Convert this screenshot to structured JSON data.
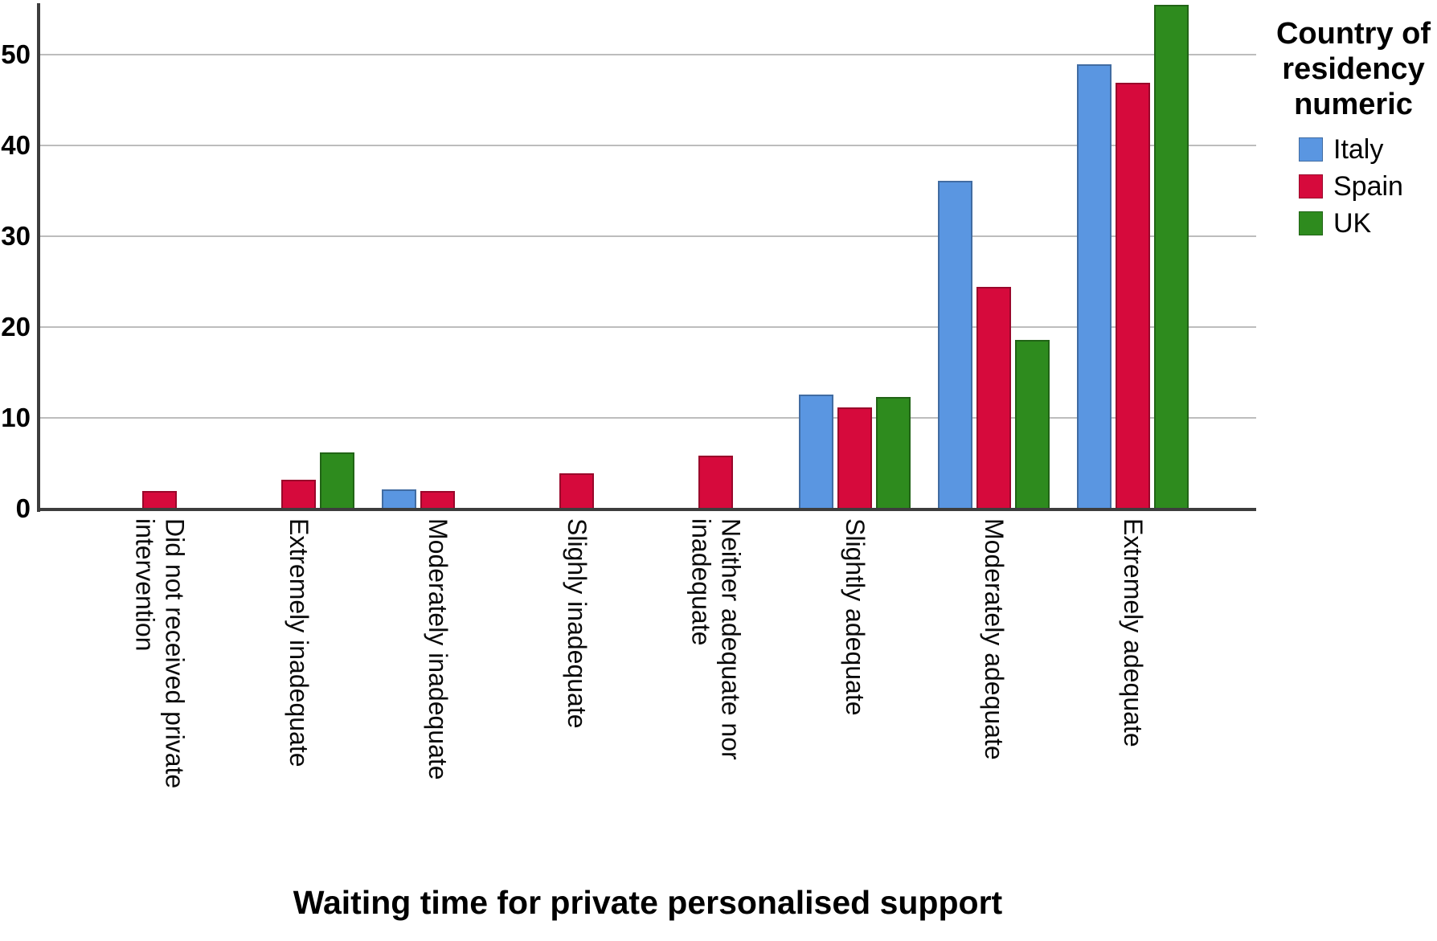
{
  "chart_data": {
    "type": "bar",
    "title": "",
    "xlabel": "Waiting time for private personalised support",
    "ylabel": "",
    "legend_title": "Country of residency numeric",
    "legend_position": "top-right",
    "grid": "horizontal",
    "ylim": [
      0,
      56
    ],
    "yticks": [
      0,
      10,
      20,
      30,
      40,
      50
    ],
    "categories": [
      [
        "Did not received private",
        "intervention"
      ],
      [
        "Extremely inadequate"
      ],
      [
        "Moderately inadequate"
      ],
      [
        "Slighly inadequate"
      ],
      [
        "Neither adequate nor",
        "inadequate"
      ],
      [
        "Slightly adequate"
      ],
      [
        "Moderately adequate"
      ],
      [
        "Extremely adequate"
      ]
    ],
    "series": [
      {
        "name": "Italy",
        "color": "#5A96E1",
        "values": [
          0,
          0,
          2.2,
          0,
          0,
          12.7,
          36.2,
          49
        ]
      },
      {
        "name": "Spain",
        "color": "#D60A3C",
        "values": [
          2,
          3.3,
          2,
          4,
          5.9,
          11.2,
          24.5,
          47
        ]
      },
      {
        "name": "UK",
        "color": "#2E8B1E",
        "values": [
          0,
          6.3,
          0,
          0,
          0,
          12.4,
          18.7,
          55.6
        ]
      }
    ],
    "axis_color": "#3d3d3d",
    "gridline_color": "#bdbdbd"
  }
}
